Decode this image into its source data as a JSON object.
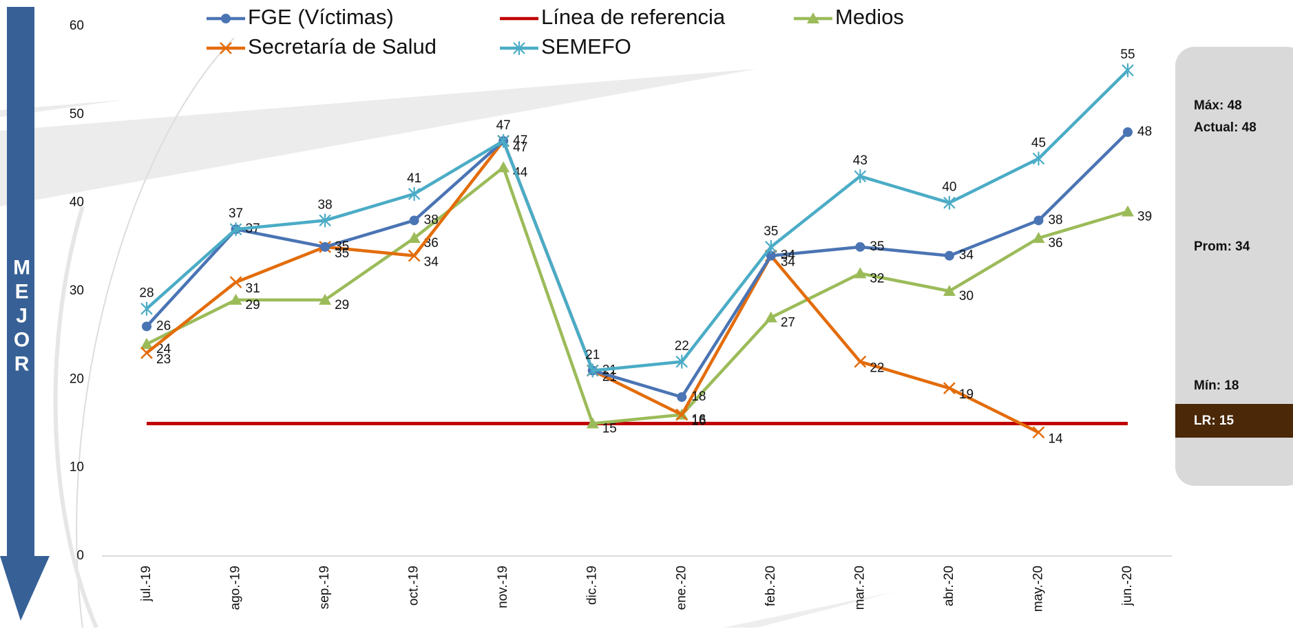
{
  "chart_data": {
    "type": "line",
    "categories": [
      "jul.-19",
      "ago.-19",
      "sep.-19",
      "oct.-19",
      "nov.-19",
      "dic.-19",
      "ene.-20",
      "feb.-20",
      "mar.-20",
      "abr.-20",
      "may.-20",
      "jun.-20"
    ],
    "series": [
      {
        "name": "FGE (Víctimas)",
        "color": "#4a74b4",
        "marker": "circle",
        "data_labels": true,
        "values": [
          26,
          37,
          35,
          38,
          47,
          21,
          18,
          34,
          35,
          34,
          38,
          48
        ]
      },
      {
        "name": "Línea de referencia",
        "color": "#c00000",
        "marker": "none",
        "data_labels": false,
        "values": [
          15,
          15,
          15,
          15,
          15,
          15,
          15,
          15,
          15,
          15,
          15,
          15
        ]
      },
      {
        "name": "Medios",
        "color": "#9bbb59",
        "marker": "triangle",
        "data_labels": true,
        "values": [
          24,
          29,
          29,
          36,
          44,
          15,
          16,
          27,
          32,
          30,
          36,
          39
        ]
      },
      {
        "name": "Secretaría de Salud",
        "color": "#e36c0a",
        "marker": "x",
        "data_labels": true,
        "values": [
          23,
          31,
          35,
          34,
          47,
          21,
          16,
          34,
          22,
          19,
          14,
          null
        ]
      },
      {
        "name": "SEMEFO",
        "color": "#4bacc6",
        "marker": "star",
        "data_labels": true,
        "values": [
          28,
          37,
          38,
          41,
          47,
          21,
          22,
          35,
          43,
          40,
          45,
          55
        ]
      }
    ],
    "ylim": [
      0,
      60
    ],
    "yticks": [
      0,
      10,
      20,
      30,
      40,
      50,
      60
    ],
    "grid": false,
    "legend": "top",
    "side_label": "MEJOR",
    "summary": [
      "Máx: 48",
      "Actual: 48",
      "Prom: 34",
      "Mín: 18",
      "LR: 15"
    ]
  }
}
